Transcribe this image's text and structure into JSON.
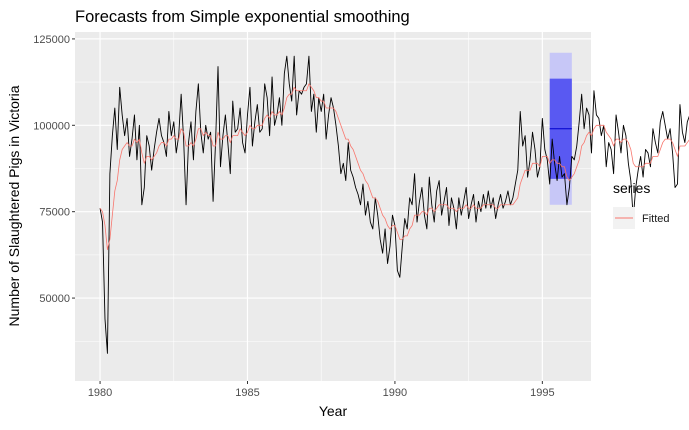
{
  "chart_data": {
    "type": "line",
    "title": "Forecasts from Simple exponential smoothing",
    "xlabel": "Year",
    "ylabel": "Number of Slaughtered Pigs in Victoria",
    "xlim": [
      1979.15,
      1996.65
    ],
    "ylim": [
      26000,
      127000
    ],
    "x_ticks": [
      1980,
      1985,
      1990,
      1995
    ],
    "x_tick_labels": [
      "1980",
      "1985",
      "1990",
      "1995"
    ],
    "y_ticks": [
      50000,
      75000,
      100000,
      125000
    ],
    "y_tick_labels": [
      "50000",
      "75000",
      "100000",
      "125000"
    ],
    "grid": true,
    "legend": {
      "title": "series",
      "position": "right",
      "entries": [
        {
          "name": "Fitted",
          "color": "#F8766D"
        }
      ]
    },
    "series": [
      {
        "name": "Observed",
        "color": "#000000",
        "x_start": 1980.0,
        "frequency": 12,
        "values": [
          76000,
          72000,
          44000,
          34000,
          86000,
          97000,
          105000,
          93000,
          111000,
          103000,
          97000,
          102000,
          91000,
          96000,
          103000,
          90000,
          100000,
          77000,
          82000,
          97000,
          94000,
          87000,
          93000,
          98000,
          102000,
          97000,
          95000,
          91000,
          104000,
          97000,
          101000,
          92000,
          97000,
          109000,
          96000,
          77000,
          95000,
          101000,
          90000,
          104000,
          112000,
          98000,
          92000,
          100000,
          96000,
          98000,
          78000,
          95000,
          117000,
          88000,
          97000,
          103000,
          95000,
          86000,
          107000,
          98000,
          99000,
          105000,
          95000,
          92000,
          103000,
          111000,
          94000,
          101000,
          106000,
          98000,
          99000,
          112000,
          108000,
          97000,
          114000,
          100000,
          103000,
          108000,
          100000,
          115000,
          120000,
          112000,
          107000,
          120000,
          103000,
          110000,
          109000,
          111000,
          112000,
          120000,
          104000,
          109000,
          98000,
          108000,
          104000,
          109000,
          96000,
          103000,
          108000,
          105000,
          100000,
          94000,
          86000,
          89000,
          84000,
          95000,
          87000,
          85000,
          82000,
          80000,
          77000,
          83000,
          74000,
          78000,
          72000,
          70000,
          79000,
          74000,
          67000,
          63000,
          70000,
          60000,
          65000,
          74000,
          71000,
          58000,
          56000,
          65000,
          73000,
          70000,
          79000,
          77000,
          86000,
          72000,
          78000,
          82000,
          74000,
          70000,
          85000,
          77000,
          72000,
          81000,
          84000,
          74000,
          78000,
          82000,
          71000,
          79000,
          76000,
          70000,
          79000,
          74000,
          78000,
          82000,
          73000,
          77000,
          80000,
          72000,
          78000,
          75000,
          80000,
          76000,
          81000,
          76000,
          79000,
          73000,
          77000,
          80000,
          76000,
          78000,
          81000,
          77000,
          79000,
          83000,
          87000,
          104000,
          94000,
          97000,
          85000,
          90000,
          98000,
          93000,
          85000,
          88000,
          102000,
          93000,
          90000,
          83000,
          96000,
          89000,
          84000,
          91000,
          85000,
          86000,
          77000,
          82000,
          91000,
          90000,
          94000,
          101000,
          109000,
          99000,
          105000,
          103000,
          92000,
          110000,
          103000,
          102000,
          97000,
          100000,
          88000,
          95000,
          93000,
          86000,
          103000,
          98000,
          92000,
          100000,
          97000,
          89000,
          84000,
          73000,
          82000,
          87000,
          91000,
          85000,
          93000,
          92000,
          88000,
          99000,
          95000,
          92000,
          101000,
          104000,
          100000,
          96000,
          99000,
          92000,
          82000,
          83000,
          106000,
          98000,
          95000,
          101000,
          103000,
          93000,
          104000,
          96000,
          97000,
          90000,
          105000,
          115000,
          93000,
          89000,
          107000,
          96000,
          110000,
          99000,
          89000
        ]
      },
      {
        "name": "Fitted",
        "color": "#F8766D",
        "x_start": 1980.0,
        "frequency": 12,
        "values": [
          76000,
          75000,
          71000,
          64000,
          67000,
          74000,
          81000,
          84000,
          90000,
          93000,
          94000,
          95000,
          94000,
          94000,
          96000,
          95000,
          96000,
          92000,
          89000,
          91000,
          91000,
          90000,
          91000,
          92000,
          94000,
          95000,
          95000,
          94000,
          96000,
          96000,
          97000,
          96000,
          96000,
          99000,
          98000,
          94000,
          94000,
          95000,
          94000,
          96000,
          99000,
          99000,
          97000,
          98000,
          97000,
          97000,
          94000,
          94000,
          98000,
          96000,
          96000,
          97000,
          97000,
          95000,
          97000,
          97000,
          97000,
          99000,
          98000,
          97000,
          98000,
          100000,
          99000,
          99000,
          100000,
          100000,
          100000,
          102000,
          103000,
          102000,
          104000,
          103000,
          103000,
          104000,
          103000,
          105000,
          108000,
          109000,
          109000,
          111000,
          110000,
          110000,
          110000,
          110000,
          110000,
          112000,
          111000,
          110000,
          108000,
          108000,
          107000,
          107000,
          105000,
          105000,
          105000,
          105000,
          104000,
          102000,
          100000,
          98000,
          96000,
          96000,
          94000,
          93000,
          91000,
          89000,
          87000,
          86000,
          84000,
          83000,
          81000,
          79000,
          79000,
          78000,
          76000,
          74000,
          73000,
          71000,
          70000,
          71000,
          71000,
          69000,
          67000,
          67000,
          68000,
          68000,
          70000,
          71000,
          74000,
          74000,
          74000,
          75000,
          75000,
          74000,
          76000,
          76000,
          75000,
          76000,
          77000,
          77000,
          77000,
          77000,
          76000,
          76000,
          76000,
          75000,
          76000,
          76000,
          76000,
          77000,
          76000,
          76000,
          77000,
          76000,
          76000,
          76000,
          77000,
          77000,
          77000,
          77000,
          77000,
          76000,
          76000,
          77000,
          77000,
          77000,
          77000,
          77000,
          77000,
          78000,
          79000,
          83000,
          85000,
          87000,
          87000,
          87000,
          89000,
          89000,
          89000,
          88000,
          91000,
          91000,
          91000,
          89000,
          90000,
          90000,
          89000,
          89000,
          88000,
          88000,
          85000,
          84000,
          85000,
          86000,
          88000,
          90000,
          94000,
          95000,
          97000,
          98000,
          97000,
          99000,
          100000,
          100000,
          100000,
          100000,
          98000,
          97000,
          96000,
          94000,
          96000,
          96000,
          95000,
          96000,
          96000,
          95000,
          93000,
          89000,
          88000,
          88000,
          88000,
          88000,
          89000,
          89000,
          89000,
          91000,
          91000,
          91000,
          93000,
          95000,
          96000,
          96000,
          96000,
          95000,
          93000,
          91000,
          94000,
          94000,
          94000,
          95000,
          96000,
          96000,
          97000,
          97000,
          97000,
          96000,
          97000,
          100000,
          99000,
          97000,
          99000,
          98000,
          100000,
          100000,
          98000
        ]
      }
    ],
    "forecast": {
      "x_start": 1995.25,
      "x_end": 1996.0,
      "point": 99000,
      "lo80": 84500,
      "hi80": 113500,
      "lo95": 77000,
      "hi95": 121000,
      "color_line": "#0000CC",
      "color_80": "#5959F2",
      "color_95": "#C7C7F7"
    }
  }
}
